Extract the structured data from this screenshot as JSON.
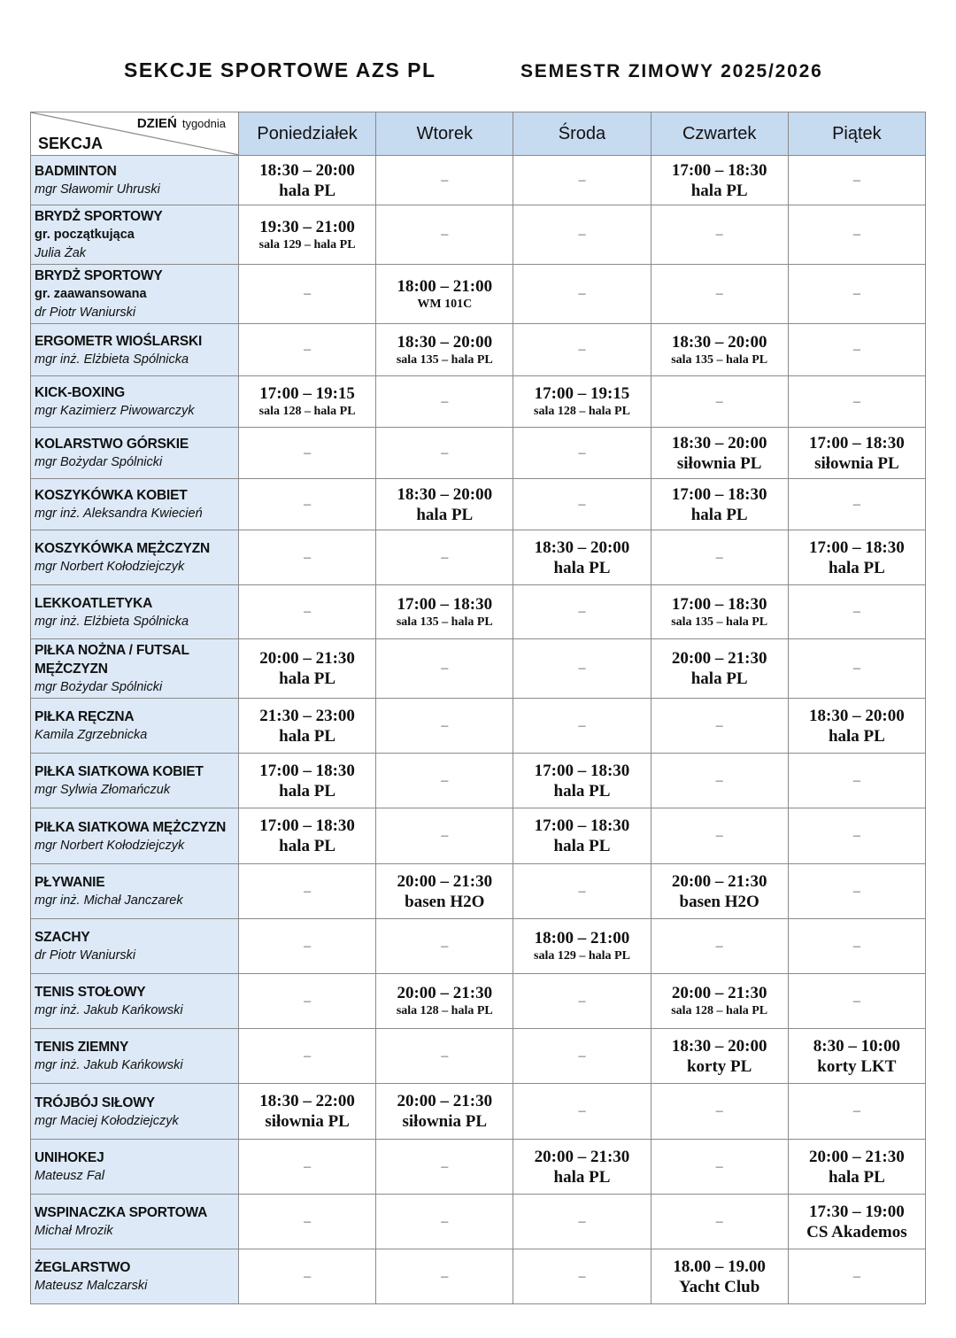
{
  "header": {
    "title_left": "SEKCJE  SPORTOWE AZS PL",
    "title_right": "SEMESTR ZIMOWY 2025/2026"
  },
  "table": {
    "corner_day": "DZIEŃ",
    "corner_week": "tygodnia",
    "corner_section": "SEKCJA",
    "days": [
      "Poniedziałek",
      "Wtorek",
      "Środa",
      "Czwartek",
      "Piątek"
    ],
    "empty": "–",
    "rows": [
      {
        "name": [
          "BADMINTON"
        ],
        "teacher": "mgr Sławomir Uhruski",
        "cells": [
          {
            "time": "18:30 – 20:00",
            "place": "hala PL"
          },
          null,
          null,
          {
            "time": "17:00 – 18:30",
            "place": "hala PL"
          },
          null
        ]
      },
      {
        "name": [
          "BRYDŻ SPORTOWY"
        ],
        "group": "gr. początkująca",
        "teacher": "Julia Żak",
        "cells": [
          {
            "time": "19:30 – 21:00",
            "place": "sala 129 – hala PL",
            "small": true
          },
          null,
          null,
          null,
          null
        ]
      },
      {
        "name": [
          "BRYDŻ SPORTOWY"
        ],
        "group": "gr. zaawansowana",
        "teacher": "dr Piotr Waniurski",
        "cells": [
          null,
          {
            "time": "18:00 – 21:00",
            "place": "WM 101C",
            "small": true
          },
          null,
          null,
          null
        ]
      },
      {
        "name": [
          "ERGOMETR WIOŚLARSKI"
        ],
        "teacher": "mgr inż. Elżbieta Spólnicka",
        "cells": [
          null,
          {
            "time": "18:30 – 20:00",
            "place": "sala 135 – hala PL",
            "small": true
          },
          null,
          {
            "time": "18:30 – 20:00",
            "place": "sala 135 – hala PL",
            "small": true
          },
          null
        ]
      },
      {
        "name": [
          "KICK-BOXING"
        ],
        "teacher": "mgr Kazimierz Piwowarczyk",
        "cells": [
          {
            "time": "17:00 – 19:15",
            "place": "sala 128 – hala PL",
            "small": true
          },
          null,
          {
            "time": "17:00 – 19:15",
            "place": "sala 128 – hala PL",
            "small": true
          },
          null,
          null
        ]
      },
      {
        "name": [
          "KOLARSTWO GÓRSKIE"
        ],
        "teacher": "mgr Bożydar Spólnicki",
        "cells": [
          null,
          null,
          null,
          {
            "time": "18:30 – 20:00",
            "place": "siłownia PL"
          },
          {
            "time": "17:00 – 18:30",
            "place": "siłownia PL"
          }
        ]
      },
      {
        "name": [
          "KOSZYKÓWKA KOBIET"
        ],
        "teacher": "mgr inż. Aleksandra Kwiecień",
        "cells": [
          null,
          {
            "time": "18:30 – 20:00",
            "place": "hala PL"
          },
          null,
          {
            "time": "17:00 – 18:30",
            "place": "hala PL"
          },
          null
        ]
      },
      {
        "name": [
          "KOSZYKÓWKA MĘŻCZYZN"
        ],
        "teacher": "mgr Norbert Kołodziejczyk",
        "cells": [
          null,
          null,
          {
            "time": "18:30 – 20:00",
            "place": "hala PL"
          },
          null,
          {
            "time": "17:00 – 18:30",
            "place": "hala PL"
          }
        ]
      },
      {
        "name": [
          "LEKKOATLETYKA"
        ],
        "teacher": "mgr inż. Elżbieta Spólnicka",
        "cells": [
          null,
          {
            "time": "17:00 – 18:30",
            "place": "sala 135 – hala PL",
            "small": true
          },
          null,
          {
            "time": "17:00 – 18:30",
            "place": "sala 135 – hala PL",
            "small": true
          },
          null
        ]
      },
      {
        "name": [
          "PIŁKA NOŻNA / FUTSAL",
          "MĘŻCZYZN"
        ],
        "teacher": "mgr Bożydar Spólnicki",
        "cells": [
          {
            "time": "20:00 – 21:30",
            "place": "hala PL"
          },
          null,
          null,
          {
            "time": "20:00 – 21:30",
            "place": "hala PL"
          },
          null
        ]
      },
      {
        "name": [
          "PIŁKA RĘCZNA"
        ],
        "teacher": "Kamila Zgrzebnicka",
        "cells": [
          {
            "time": "21:30 – 23:00",
            "place": "hala PL"
          },
          null,
          null,
          null,
          {
            "time": "18:30 – 20:00",
            "place": "hala PL"
          }
        ]
      },
      {
        "name": [
          "PIŁKA SIATKOWA KOBIET"
        ],
        "teacher": "mgr Sylwia Złomańczuk",
        "cells": [
          {
            "time": "17:00 – 18:30",
            "place": "hala PL"
          },
          null,
          {
            "time": "17:00 – 18:30",
            "place": "hala PL"
          },
          null,
          null
        ]
      },
      {
        "name": [
          "PIŁKA SIATKOWA MĘŻCZYZN"
        ],
        "teacher": "mgr Norbert Kołodziejczyk",
        "cells": [
          {
            "time": "17:00 – 18:30",
            "place": "hala PL"
          },
          null,
          {
            "time": "17:00 – 18:30",
            "place": "hala PL"
          },
          null,
          null
        ]
      },
      {
        "name": [
          "PŁYWANIE"
        ],
        "teacher": "mgr inż. Michał Janczarek",
        "cells": [
          null,
          {
            "time": "20:00 – 21:30",
            "place": "basen H2O"
          },
          null,
          {
            "time": "20:00 – 21:30",
            "place": "basen H2O"
          },
          null
        ]
      },
      {
        "name": [
          "SZACHY"
        ],
        "teacher": "dr Piotr Waniurski",
        "cells": [
          null,
          null,
          {
            "time": "18:00 – 21:00",
            "place": "sala 129 – hala PL",
            "small": true
          },
          null,
          null
        ]
      },
      {
        "name": [
          "TENIS STOŁOWY"
        ],
        "teacher": "mgr inż. Jakub Kańkowski",
        "cells": [
          null,
          {
            "time": "20:00 – 21:30",
            "place": "sala 128 – hala PL",
            "small": true
          },
          null,
          {
            "time": "20:00 – 21:30",
            "place": "sala 128 – hala PL",
            "small": true
          },
          null
        ]
      },
      {
        "name": [
          "TENIS ZIEMNY"
        ],
        "teacher": "mgr inż. Jakub Kańkowski",
        "cells": [
          null,
          null,
          null,
          {
            "time": "18:30 – 20:00",
            "place": "korty PL"
          },
          {
            "time": "8:30 – 10:00",
            "place": "korty LKT"
          }
        ]
      },
      {
        "name": [
          "TRÓJBÓJ SIŁOWY"
        ],
        "teacher": "mgr Maciej Kołodziejczyk",
        "cells": [
          {
            "time": "18:30 – 22:00",
            "place": "siłownia PL"
          },
          {
            "time": "20:00 – 21:30",
            "place": "siłownia PL"
          },
          null,
          null,
          null
        ]
      },
      {
        "name": [
          "UNIHOKEJ"
        ],
        "teacher": "Mateusz Fal",
        "cells": [
          null,
          null,
          {
            "time": "20:00 – 21:30",
            "place": "hala PL"
          },
          null,
          {
            "time": "20:00 – 21:30",
            "place": "hala PL"
          }
        ]
      },
      {
        "name": [
          "WSPINACZKA SPORTOWA"
        ],
        "teacher": "Michał Mrozik",
        "cells": [
          null,
          null,
          null,
          null,
          {
            "time": "17:30 – 19:00",
            "place": "CS Akademos"
          }
        ]
      },
      {
        "name": [
          "ŻEGLARSTWO"
        ],
        "teacher": "Mateusz Malczarski",
        "cells": [
          null,
          null,
          null,
          {
            "time": "18.00 – 19.00",
            "place": "Yacht Club"
          },
          null
        ]
      }
    ]
  }
}
